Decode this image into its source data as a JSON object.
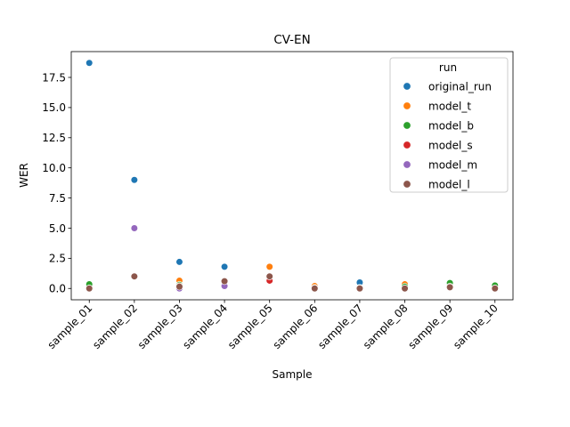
{
  "chart_data": {
    "type": "scatter",
    "title": "CV-EN",
    "xlabel": "Sample",
    "ylabel": "WER",
    "categories": [
      "sample_01",
      "sample_02",
      "sample_03",
      "sample_04",
      "sample_05",
      "sample_06",
      "sample_07",
      "sample_08",
      "sample_09",
      "sample_10"
    ],
    "ylim": [
      -0.94,
      19.64
    ],
    "yticks": [
      "0.0",
      "2.5",
      "5.0",
      "7.5",
      "10.0",
      "12.5",
      "15.0",
      "17.5"
    ],
    "ytick_values": [
      0,
      2.5,
      5.0,
      7.5,
      10.0,
      12.5,
      15.0,
      17.5
    ],
    "grid": false,
    "legend": {
      "title": "run",
      "placement": "top-right"
    },
    "series": [
      {
        "name": "original_run",
        "color": "#1f77b4",
        "values": [
          18.7,
          9.0,
          2.2,
          1.8,
          1.0,
          0.05,
          0.5,
          0.2,
          0.35,
          0.05
        ]
      },
      {
        "name": "model_t",
        "color": "#ff7f0e",
        "values": [
          0.1,
          1.0,
          0.65,
          0.6,
          1.8,
          0.2,
          0.05,
          0.35,
          0.25,
          0.1
        ]
      },
      {
        "name": "model_b",
        "color": "#2ca02c",
        "values": [
          0.35,
          1.0,
          0.3,
          0.6,
          1.0,
          0.05,
          0.05,
          0.15,
          0.45,
          0.25
        ]
      },
      {
        "name": "model_s",
        "color": "#d62728",
        "values": [
          0.0,
          1.0,
          0.2,
          0.6,
          0.65,
          0.0,
          0.0,
          0.0,
          0.15,
          0.0
        ]
      },
      {
        "name": "model_m",
        "color": "#9467bd",
        "values": [
          0.0,
          5.0,
          0.0,
          0.2,
          1.0,
          0.0,
          0.0,
          0.0,
          0.1,
          0.0
        ]
      },
      {
        "name": "model_l",
        "color": "#8c564b",
        "values": [
          0.0,
          1.0,
          0.15,
          0.6,
          1.0,
          0.0,
          0.0,
          0.0,
          0.1,
          0.0
        ]
      }
    ]
  }
}
